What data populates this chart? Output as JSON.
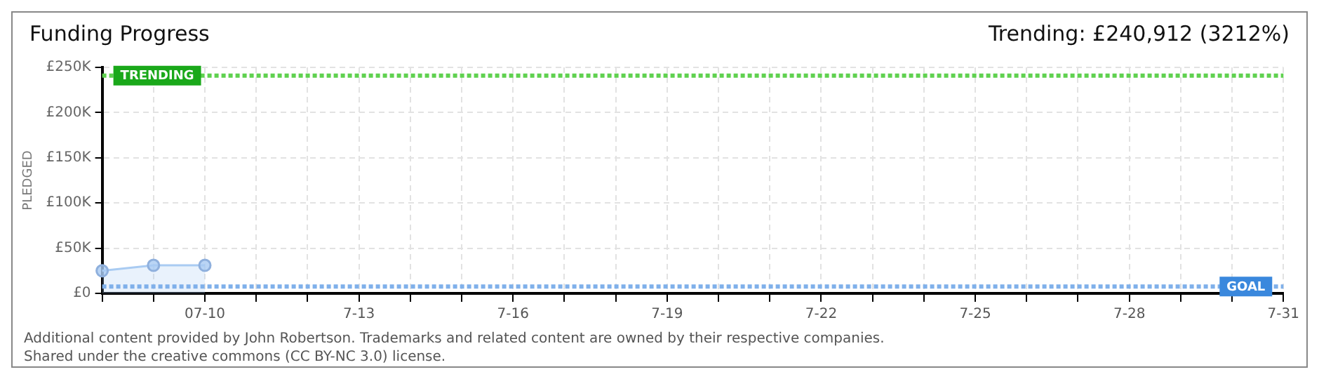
{
  "chart_data": {
    "type": "area",
    "title": "Funding Progress",
    "subtitle": "Trending: £240,912 (3212%)",
    "ylabel": "PLEDGED",
    "categories": [
      null,
      null,
      "07-10",
      null,
      null,
      "7-13",
      null,
      null,
      "7-16",
      null,
      null,
      "7-19",
      null,
      null,
      "7-22",
      null,
      null,
      "7-25",
      null,
      null,
      "7-28",
      null,
      null,
      "7-31"
    ],
    "series": [
      {
        "color": "#a9cbf2",
        "values": [
          25000,
          31000,
          31000,
          null,
          null,
          null,
          null,
          null,
          null,
          null,
          null,
          null,
          null,
          null,
          null,
          null,
          null,
          null,
          null,
          null,
          null,
          null,
          null,
          null
        ]
      }
    ],
    "ylim": [
      0,
      250000
    ],
    "yticks": [
      {
        "value": 0,
        "label": "£0"
      },
      {
        "value": 50000,
        "label": "£50K"
      },
      {
        "value": 100000,
        "label": "£100K"
      },
      {
        "value": 150000,
        "label": "£150K"
      },
      {
        "value": 200000,
        "label": "£200K"
      },
      {
        "value": 250000,
        "label": "£250K"
      }
    ],
    "ref_lines": [
      {
        "axis": "y",
        "value": 240912,
        "label": "TRENDING",
        "color": "#5fd14f",
        "line_style": "dotted"
      },
      {
        "axis": "y",
        "value": 7500,
        "label": "GOAL",
        "color": "#7fb0ea",
        "line_style": "dotted"
      }
    ],
    "grid": true,
    "legend": false,
    "marker": "circle",
    "annotations": [
      "Additional content provided by John Robertson. Trademarks and related content are owned by their respective companies.",
      "Shared under the creative commons (CC BY-NC 3.0) license."
    ]
  }
}
